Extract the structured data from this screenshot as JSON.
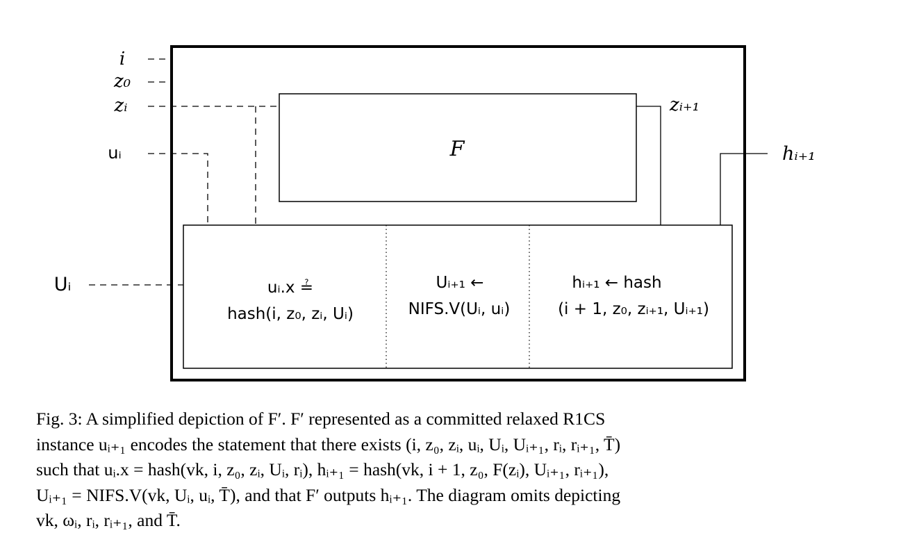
{
  "diagram": {
    "inputs": {
      "i": "i",
      "z0": "z₀",
      "zi": "zᵢ",
      "ui": "uᵢ",
      "Ui": "Uᵢ"
    },
    "outputs": {
      "zi1": "zᵢ₊₁",
      "hi1": "hᵢ₊₁"
    },
    "function_box": {
      "label": "F"
    },
    "panels": {
      "check": {
        "line1": "uᵢ.x ≟",
        "line2": "hash(i, z₀, zᵢ, Uᵢ)"
      },
      "fold": {
        "line1": "Uᵢ₊₁  ←",
        "line2": "NIFS.V(Uᵢ, uᵢ)"
      },
      "hash": {
        "line1": "hᵢ₊₁ ← hash",
        "line2": "(i + 1, z₀, zᵢ₊₁, Uᵢ₊₁)"
      }
    }
  },
  "caption": {
    "lines": [
      "Fig. 3: A simplified depiction of F′. F′ represented as a committed relaxed R1CS",
      "instance uᵢ₊₁ encodes the statement that there exists (i, z₀, zᵢ, uᵢ, Uᵢ, Uᵢ₊₁, rᵢ, rᵢ₊₁, T̄)",
      "such that uᵢ.x = hash(vk, i, z₀, zᵢ, Uᵢ, rᵢ), hᵢ₊₁ = hash(vk, i + 1, z₀, F(zᵢ), Uᵢ₊₁, rᵢ₊₁),",
      "Uᵢ₊₁ = NIFS.V(vk, Uᵢ, uᵢ, T̄), and that F′ outputs hᵢ₊₁. The diagram omits depicting",
      "vk, ωᵢ, rᵢ, rᵢ₊₁, and T̄."
    ]
  }
}
